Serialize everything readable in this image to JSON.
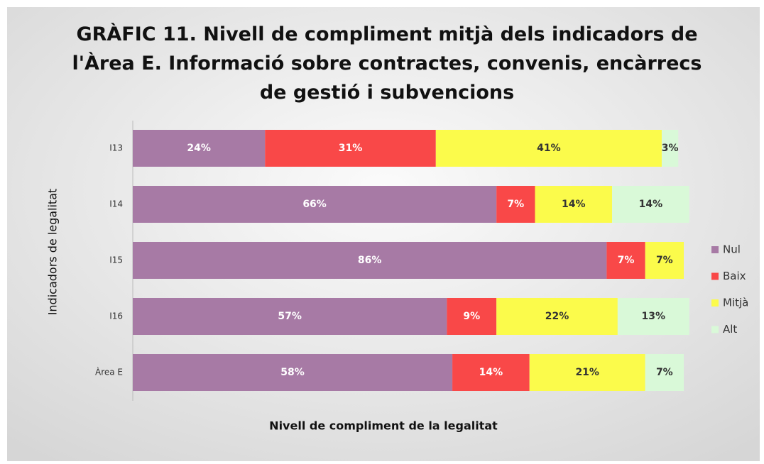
{
  "chart_data": {
    "type": "stacked_barh",
    "title": "GRÀFIC 11. Nivell de compliment mitjà dels indicadors de l'Àrea E. Informació sobre contractes, convenis, encàrrecs de gestió i subvencions",
    "xlabel": "Nivell de compliment de la legalitat",
    "ylabel": "Indicadors de legalitat",
    "categories": [
      "I13",
      "I14",
      "I15",
      "I16",
      "Àrea E"
    ],
    "xlim": [
      0,
      100
    ],
    "series": [
      {
        "name": "Nul",
        "color": "#a77aa5",
        "values": [
          24,
          66,
          86,
          57,
          58
        ],
        "value_labels": [
          "24%",
          "66%",
          "86%",
          "57%",
          "58%"
        ]
      },
      {
        "name": "Baix",
        "color": "#f94848",
        "values": [
          31,
          7,
          7,
          9,
          14
        ],
        "value_labels": [
          "31%",
          "7%",
          "7%",
          "9%",
          "14%"
        ]
      },
      {
        "name": "Mitjà",
        "color": "#fbfb4b",
        "values": [
          41,
          14,
          7,
          22,
          21
        ],
        "value_labels": [
          "41%",
          "14%",
          "7%",
          "22%",
          "21%"
        ]
      },
      {
        "name": "Alt",
        "color": "#d9f9d8",
        "values": [
          3,
          14,
          null,
          13,
          7
        ],
        "value_labels": [
          "3%",
          "14%",
          null,
          "13%",
          "7%"
        ]
      }
    ],
    "legend": "right"
  }
}
